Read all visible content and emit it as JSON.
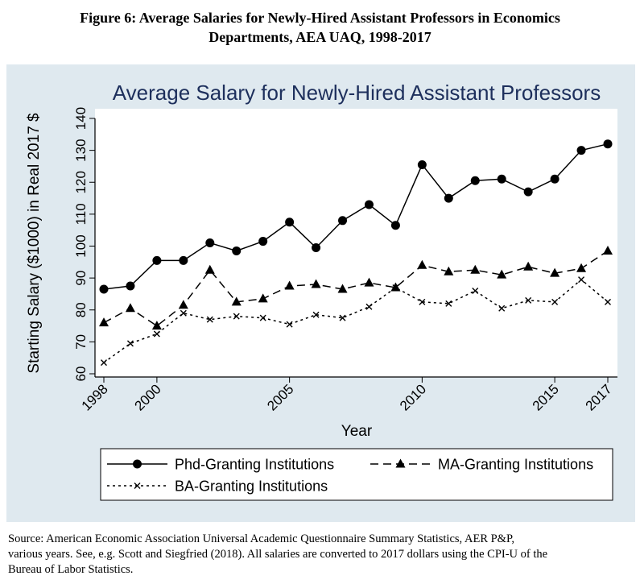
{
  "figure_caption": {
    "line1": "Figure 6: Average Salaries for Newly-Hired Assistant Professors in Economics",
    "line2": "Departments, AEA UAQ, 1998-2017"
  },
  "source_note": {
    "line1": "Source:  American Economic Association Universal Academic Questionnaire Summary Statistics, AER P&P,",
    "line2": "various years. See, e.g. Scott and Siegfried (2018). All salaries are converted to 2017 dollars using the CPI-U of the",
    "line3": "Bureau of Labor Statistics."
  },
  "colors": {
    "plot_background": "#dfe9ef",
    "panel_background": "#ffffff",
    "title": "#1d2f5c",
    "series": "#000000"
  },
  "chart_data": {
    "type": "line",
    "title": "Average Salary for Newly-Hired Assistant Professors",
    "xlabel": "Year",
    "ylabel": "Starting Salary ($1000) in Real 2017 $",
    "xlim": [
      1998,
      2017
    ],
    "ylim": [
      60,
      140
    ],
    "x_ticks": [
      1998,
      2000,
      2005,
      2010,
      2015,
      2017
    ],
    "y_ticks": [
      60,
      70,
      80,
      90,
      100,
      110,
      120,
      130,
      140
    ],
    "grid": false,
    "legend_position": "bottom",
    "x": [
      1998,
      1999,
      2000,
      2001,
      2002,
      2003,
      2004,
      2005,
      2006,
      2007,
      2008,
      2009,
      2010,
      2011,
      2012,
      2013,
      2014,
      2015,
      2016,
      2017
    ],
    "series": [
      {
        "name": "Phd-Granting Institutions",
        "line_style": "solid",
        "marker": "circle",
        "values": [
          86.5,
          87.5,
          95.5,
          95.5,
          101.0,
          98.5,
          101.5,
          107.5,
          99.5,
          108.0,
          113.0,
          106.5,
          125.5,
          115.0,
          120.5,
          121.0,
          117.0,
          121.0,
          130.0,
          132.0
        ]
      },
      {
        "name": "MA-Granting Institutions",
        "line_style": "dash",
        "marker": "triangle",
        "values": [
          76.0,
          80.5,
          75.0,
          81.5,
          92.5,
          82.5,
          83.5,
          87.5,
          88.0,
          86.5,
          88.5,
          87.0,
          94.0,
          92.0,
          92.5,
          91.0,
          93.5,
          91.5,
          93.0,
          98.5
        ]
      },
      {
        "name": "BA-Granting Institutions",
        "line_style": "dot",
        "marker": "x",
        "values": [
          63.5,
          69.5,
          72.5,
          79.0,
          77.0,
          78.0,
          77.5,
          75.5,
          78.5,
          77.5,
          81.0,
          87.0,
          82.5,
          82.0,
          86.0,
          80.5,
          83.0,
          82.5,
          89.5,
          82.5
        ]
      }
    ]
  }
}
